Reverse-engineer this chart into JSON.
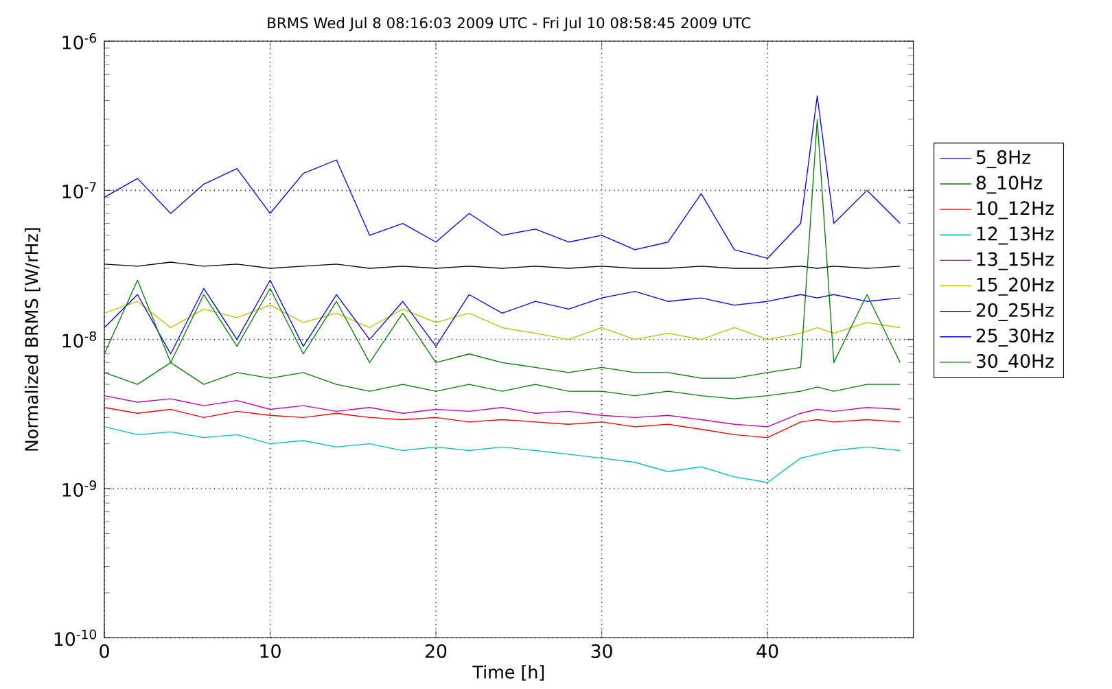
{
  "chart_data": {
    "type": "line",
    "title": "BRMS Wed Jul  8 08:16:03 2009 UTC - Fri Jul 10 08:58:45 2009 UTC",
    "xlabel": "Time [h]",
    "ylabel": "Normalized BRMS [W/rHz]",
    "x": [
      0,
      2,
      4,
      6,
      8,
      10,
      12,
      14,
      16,
      18,
      20,
      22,
      24,
      26,
      28,
      30,
      32,
      34,
      36,
      38,
      40,
      42,
      43,
      44,
      46,
      48
    ],
    "xlim": [
      0,
      48.8
    ],
    "xticks": [
      0,
      10,
      20,
      30,
      40
    ],
    "ylim": [
      1e-10,
      1e-06
    ],
    "log": "y",
    "yticks": [
      {
        "value": 1e-10,
        "label": "10$^{-10}$"
      },
      {
        "value": 1e-09,
        "label": "10$^{-9}$"
      },
      {
        "value": 1e-08,
        "label": "10$^{-8}$"
      },
      {
        "value": 1e-07,
        "label": "10$^{-7}$"
      },
      {
        "value": 1e-06,
        "label": "10$^{-6}$"
      }
    ],
    "grid": true,
    "legend": "right",
    "line_style": "solid",
    "marker": "none",
    "series": [
      {
        "name": "5_8Hz",
        "color": "#0000ff",
        "values": [
          9e-08,
          1.2e-07,
          7e-08,
          1.1e-07,
          1.4e-07,
          7e-08,
          1.3e-07,
          1.6e-07,
          5e-08,
          6e-08,
          4.5e-08,
          7e-08,
          5e-08,
          5.5e-08,
          4.5e-08,
          5e-08,
          4e-08,
          4.5e-08,
          9.5e-08,
          4e-08,
          3.5e-08,
          6e-08,
          4.3e-07,
          6e-08,
          1e-07,
          6e-08
        ]
      },
      {
        "name": "8_10Hz",
        "color": "#008000",
        "values": [
          6e-09,
          5e-09,
          7e-09,
          5e-09,
          6e-09,
          5.5e-09,
          6e-09,
          5e-09,
          4.5e-09,
          5e-09,
          4.5e-09,
          5e-09,
          4.5e-09,
          5e-09,
          4.5e-09,
          4.5e-09,
          4.2e-09,
          4.5e-09,
          4.2e-09,
          4e-09,
          4.2e-09,
          4.5e-09,
          4.8e-09,
          4.5e-09,
          5e-09,
          5e-09
        ]
      },
      {
        "name": "10_12Hz",
        "color": "#ff0000",
        "values": [
          3.5e-09,
          3.2e-09,
          3.4e-09,
          3e-09,
          3.3e-09,
          3.1e-09,
          3e-09,
          3.2e-09,
          3e-09,
          2.9e-09,
          3e-09,
          2.8e-09,
          2.9e-09,
          2.8e-09,
          2.7e-09,
          2.8e-09,
          2.6e-09,
          2.7e-09,
          2.5e-09,
          2.3e-09,
          2.2e-09,
          2.8e-09,
          2.9e-09,
          2.8e-09,
          2.9e-09,
          2.8e-09
        ]
      },
      {
        "name": "12_13Hz",
        "color": "#00bfbf",
        "values": [
          2.6e-09,
          2.3e-09,
          2.4e-09,
          2.2e-09,
          2.3e-09,
          2e-09,
          2.1e-09,
          1.9e-09,
          2e-09,
          1.8e-09,
          1.9e-09,
          1.8e-09,
          1.9e-09,
          1.8e-09,
          1.7e-09,
          1.6e-09,
          1.5e-09,
          1.3e-09,
          1.4e-09,
          1.2e-09,
          1.1e-09,
          1.6e-09,
          1.7e-09,
          1.8e-09,
          1.9e-09,
          1.8e-09
        ]
      },
      {
        "name": "13_15Hz",
        "color": "#bf00bf",
        "values": [
          4.2e-09,
          3.8e-09,
          4e-09,
          3.6e-09,
          3.9e-09,
          3.4e-09,
          3.6e-09,
          3.3e-09,
          3.5e-09,
          3.2e-09,
          3.4e-09,
          3.3e-09,
          3.5e-09,
          3.2e-09,
          3.3e-09,
          3.1e-09,
          3e-09,
          3.1e-09,
          2.9e-09,
          2.7e-09,
          2.6e-09,
          3.2e-09,
          3.4e-09,
          3.3e-09,
          3.5e-09,
          3.4e-09
        ]
      },
      {
        "name": "15_20Hz",
        "color": "#bfbf00",
        "values": [
          1.5e-08,
          1.8e-08,
          1.2e-08,
          1.6e-08,
          1.4e-08,
          1.7e-08,
          1.3e-08,
          1.5e-08,
          1.2e-08,
          1.6e-08,
          1.3e-08,
          1.5e-08,
          1.2e-08,
          1.1e-08,
          1e-08,
          1.2e-08,
          1e-08,
          1.1e-08,
          1e-08,
          1.2e-08,
          1e-08,
          1.1e-08,
          1.2e-08,
          1.1e-08,
          1.3e-08,
          1.2e-08
        ]
      },
      {
        "name": "20_25Hz",
        "color": "#000000",
        "values": [
          3.2e-08,
          3.1e-08,
          3.3e-08,
          3.1e-08,
          3.2e-08,
          3e-08,
          3.1e-08,
          3.2e-08,
          3e-08,
          3.1e-08,
          3e-08,
          3.1e-08,
          3e-08,
          3.1e-08,
          3e-08,
          3.1e-08,
          3e-08,
          3e-08,
          3.1e-08,
          3e-08,
          3e-08,
          3.1e-08,
          3e-08,
          3.1e-08,
          3e-08,
          3.1e-08
        ]
      },
      {
        "name": "25_30Hz",
        "color": "#0000ff",
        "values": [
          1.2e-08,
          2e-08,
          8e-09,
          2.2e-08,
          1e-08,
          2.5e-08,
          9e-09,
          2e-08,
          1e-08,
          1.8e-08,
          9e-09,
          2e-08,
          1.5e-08,
          1.8e-08,
          1.6e-08,
          1.9e-08,
          2.1e-08,
          1.8e-08,
          1.9e-08,
          1.7e-08,
          1.8e-08,
          2e-08,
          1.9e-08,
          2e-08,
          1.8e-08,
          1.9e-08
        ]
      },
      {
        "name": "30_40Hz",
        "color": "#008000",
        "values": [
          8e-09,
          2.5e-08,
          7e-09,
          2e-08,
          9e-09,
          2.2e-08,
          8e-09,
          1.8e-08,
          7e-09,
          1.5e-08,
          7e-09,
          8e-09,
          7e-09,
          6.5e-09,
          6e-09,
          6.5e-09,
          6e-09,
          6e-09,
          5.5e-09,
          5.5e-09,
          6e-09,
          6.5e-09,
          3e-07,
          7e-09,
          2e-08,
          7e-09
        ]
      }
    ]
  }
}
